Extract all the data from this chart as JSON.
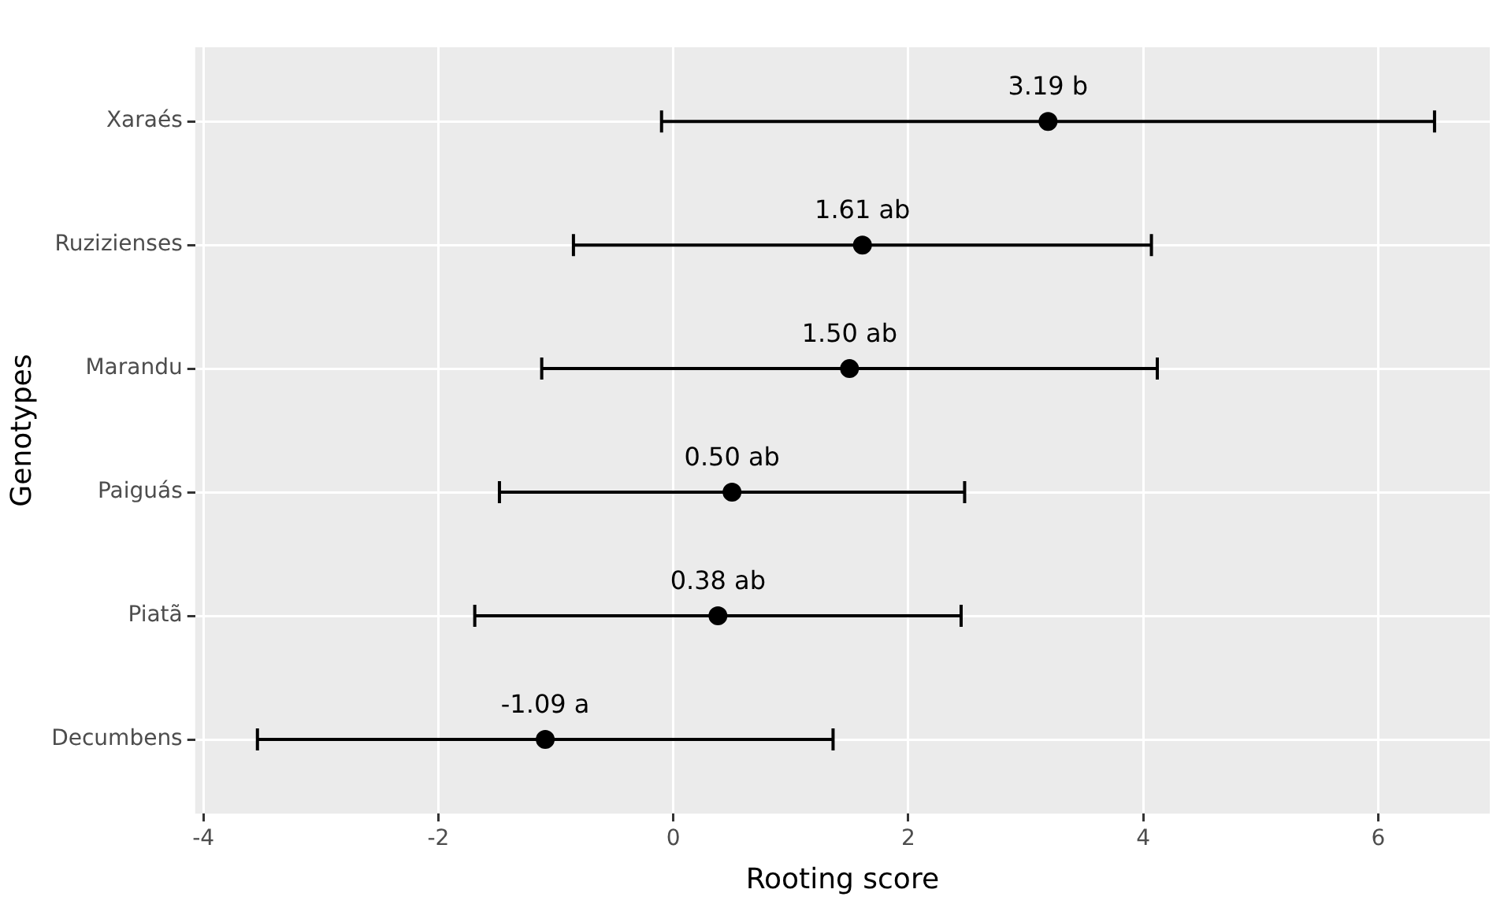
{
  "chart_data": {
    "type": "scatter",
    "orientation": "horizontal",
    "xlabel": "Rooting score",
    "ylabel": "Genotypes",
    "categories": [
      "Xaraés",
      "Ruzizienses",
      "Marandu",
      "Paiguás",
      "Piatã",
      "Decumbens"
    ],
    "values": [
      3.19,
      1.61,
      1.5,
      0.5,
      0.38,
      -1.09
    ],
    "errors": [
      3.29,
      2.46,
      2.62,
      1.98,
      2.07,
      2.45
    ],
    "value_labels": [
      "3.19 b",
      "1.61 ab",
      "1.50 ab",
      "0.50 ab",
      "0.38 ab",
      "-1.09 a"
    ],
    "color": "#000000",
    "marker": "circle",
    "grid": true,
    "legend": false,
    "xlim": [
      -4.07,
      6.95
    ],
    "xticks": [
      -4,
      -2,
      0,
      2,
      4,
      6
    ]
  }
}
